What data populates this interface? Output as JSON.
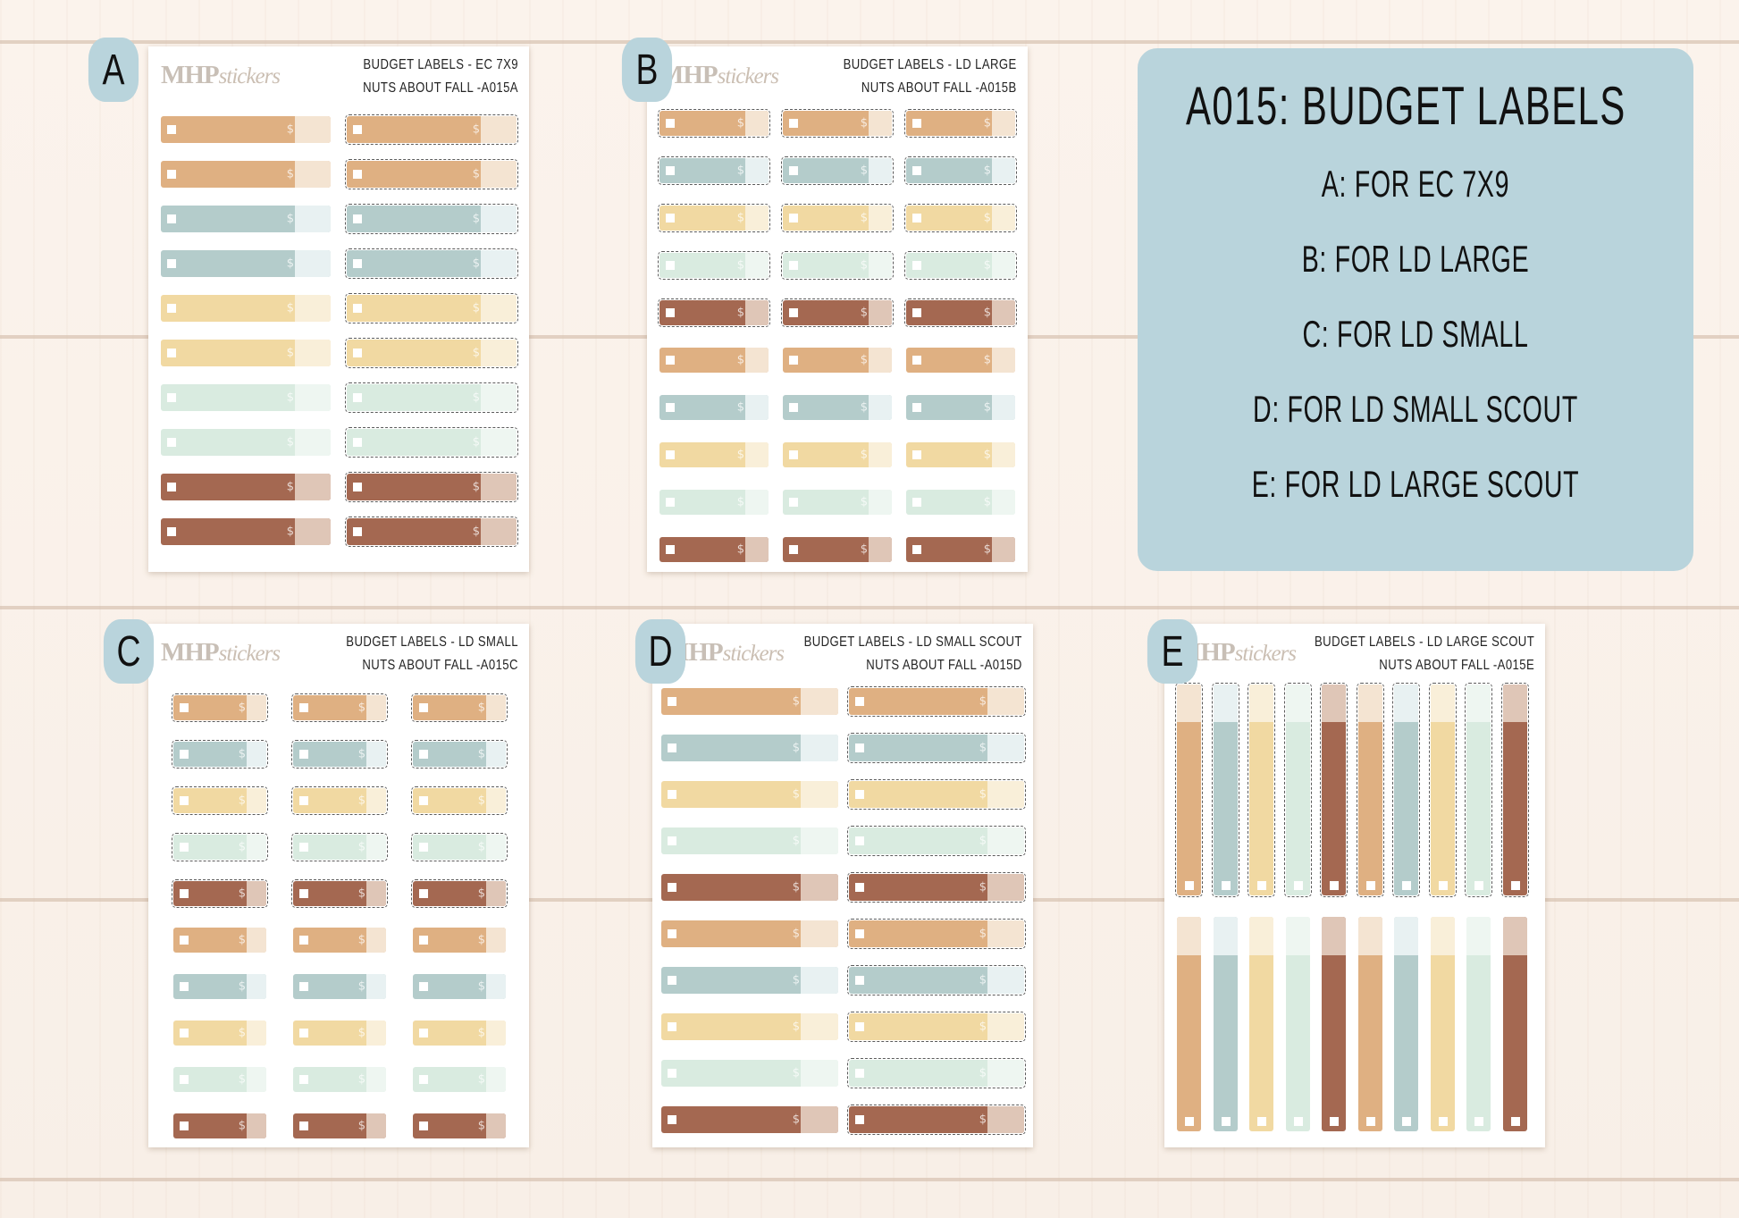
{
  "info": {
    "title": "A015: BUDGET LABELS",
    "items": [
      "A: FOR EC 7X9",
      "B: FOR LD LARGE",
      "C: FOR LD SMALL",
      "D: FOR LD SMALL SCOUT",
      "E: FOR LD LARGE SCOUT"
    ]
  },
  "brand": {
    "main": "MHP",
    "script": "stickers"
  },
  "dollar_symbol": "$",
  "colors": {
    "orange": [
      "#dfb082",
      "#f4e4d2"
    ],
    "blue": [
      "#b4cccb",
      "#e8f1f2"
    ],
    "yellow": [
      "#f1d9a2",
      "#f9efd9"
    ],
    "mint": [
      "#d9ebe0",
      "#eef6f1"
    ],
    "rust": [
      "#a46851",
      "#dfc6b7"
    ]
  },
  "panels": [
    {
      "letter": "A",
      "title1": "BUDGET LABELS - EC 7X9",
      "title2": "NUTS ABOUT FALL -A015A"
    },
    {
      "letter": "B",
      "title1": "BUDGET LABELS - LD LARGE",
      "title2": "NUTS ABOUT FALL -A015B"
    },
    {
      "letter": "C",
      "title1": "BUDGET LABELS - LD SMALL",
      "title2": "NUTS ABOUT FALL -A015C"
    },
    {
      "letter": "D",
      "title1": "BUDGET LABELS - LD SMALL SCOUT",
      "title2": "NUTS ABOUT FALL -A015D"
    },
    {
      "letter": "E",
      "title1": "BUDGET LABELS - LD LARGE SCOUT",
      "title2": "NUTS ABOUT FALL -A015E"
    }
  ]
}
